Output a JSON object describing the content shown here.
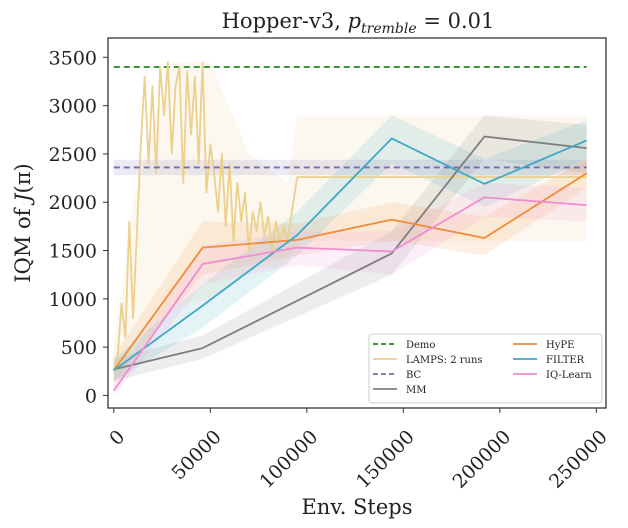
{
  "chart_data": {
    "type": "line",
    "title": "Hopper-v3, p_tremble = 0.01",
    "title_parts": {
      "main": "Hopper-v3, ",
      "p": "p",
      "subscript": "tremble",
      "rest": " = 0.01"
    },
    "xlabel": "Env. Steps",
    "ylabel": "IQM of J(π)",
    "ylabel_parts": {
      "prefix": "IQM of ",
      "J": "J",
      "rest": "(π)"
    },
    "xlim": [
      -3000,
      255000
    ],
    "ylim": [
      -130,
      3700
    ],
    "x_ticks": [
      0,
      50000,
      100000,
      150000,
      200000,
      250000
    ],
    "x_tick_labels": [
      "0",
      "50000",
      "100000",
      "150000",
      "200000",
      "250000"
    ],
    "y_ticks": [
      0,
      500,
      1000,
      1500,
      2000,
      2500,
      3000,
      3500
    ],
    "y_tick_labels": [
      "0",
      "500",
      "1000",
      "1500",
      "2000",
      "2500",
      "3000",
      "3500"
    ],
    "grid": false,
    "legend_position": "lower-right",
    "series": [
      {
        "name": "Demo",
        "color": "#1a8a1a",
        "dash": "dashed",
        "x": [
          0,
          245000
        ],
        "y": [
          3400,
          3400
        ]
      },
      {
        "name": "LAMPS: 2 runs",
        "color": "#ecd08c",
        "dash": "solid",
        "x": [
          0,
          2000,
          4000,
          6000,
          8000,
          10000,
          12000,
          14000,
          16000,
          18000,
          20000,
          22000,
          24000,
          26000,
          28000,
          30000,
          32000,
          34000,
          36000,
          38000,
          40000,
          42000,
          44000,
          46000,
          48000,
          50000,
          52000,
          54000,
          56000,
          58000,
          60000,
          62000,
          64000,
          66000,
          68000,
          70000,
          72000,
          74000,
          76000,
          78000,
          80000,
          82000,
          84000,
          86000,
          88000,
          90000,
          95000,
          245000
        ],
        "y": [
          250,
          400,
          950,
          600,
          1800,
          800,
          1700,
          2600,
          3300,
          2400,
          3200,
          2300,
          3400,
          2900,
          3450,
          2500,
          3200,
          3400,
          2200,
          3350,
          2700,
          3300,
          2400,
          3450,
          2100,
          2600,
          2300,
          1900,
          2500,
          1750,
          2400,
          1600,
          2200,
          1800,
          2100,
          1500,
          1900,
          1700,
          2000,
          1650,
          1850,
          1500,
          1800,
          1600,
          1750,
          1600,
          2260,
          2260
        ],
        "band_x": [
          0,
          10000,
          30000,
          50000,
          70000,
          90000,
          95000,
          245000
        ],
        "band_low": [
          100,
          300,
          900,
          1000,
          1300,
          1350,
          1600,
          1600
        ],
        "band_high": [
          500,
          2000,
          3450,
          3450,
          2500,
          2200,
          2900,
          2900
        ]
      },
      {
        "name": "BC",
        "color": "#7b6bb0",
        "dash": "dashed",
        "x": [
          0,
          245000
        ],
        "y": [
          2360,
          2360
        ],
        "band_low": [
          2280,
          2280
        ],
        "band_high": [
          2440,
          2440
        ]
      },
      {
        "name": "MM",
        "color": "#7f7f7f",
        "dash": "solid",
        "x": [
          0,
          46000,
          144000,
          192000,
          245000
        ],
        "y": [
          270,
          490,
          1470,
          2680,
          2560
        ],
        "band_low": [
          150,
          380,
          1250,
          2450,
          2300
        ],
        "band_high": [
          380,
          620,
          1700,
          2900,
          2800
        ]
      },
      {
        "name": "HyPE",
        "color": "#f08c3c",
        "dash": "solid",
        "x": [
          0,
          46000,
          95000,
          144000,
          192000,
          245000
        ],
        "y": [
          260,
          1530,
          1610,
          1820,
          1630,
          2300
        ],
        "band_low": [
          150,
          1250,
          1450,
          1600,
          1450,
          2150
        ],
        "band_high": [
          400,
          1800,
          1780,
          2000,
          1850,
          2450
        ]
      },
      {
        "name": "FILTER",
        "color": "#3fa9c2",
        "dash": "solid",
        "x": [
          0,
          46000,
          95000,
          144000,
          192000,
          245000
        ],
        "y": [
          260,
          930,
          1660,
          2660,
          2190,
          2640
        ],
        "band_low": [
          150,
          700,
          1450,
          2400,
          1950,
          2450
        ],
        "band_high": [
          380,
          1150,
          1900,
          2900,
          2450,
          2850
        ]
      },
      {
        "name": "IQ-Learn",
        "color": "#f08cd2",
        "dash": "solid",
        "x": [
          0,
          46000,
          95000,
          144000,
          192000,
          245000
        ],
        "y": [
          50,
          1360,
          1530,
          1490,
          2050,
          1970
        ],
        "band_low": [
          0,
          1150,
          1350,
          1250,
          1850,
          1800
        ],
        "band_high": [
          150,
          1550,
          1700,
          1700,
          2200,
          2150
        ]
      }
    ],
    "legend_order": [
      "Demo",
      "LAMPS: 2 runs",
      "BC",
      "MM",
      "HyPE",
      "FILTER",
      "IQ-Learn"
    ]
  }
}
